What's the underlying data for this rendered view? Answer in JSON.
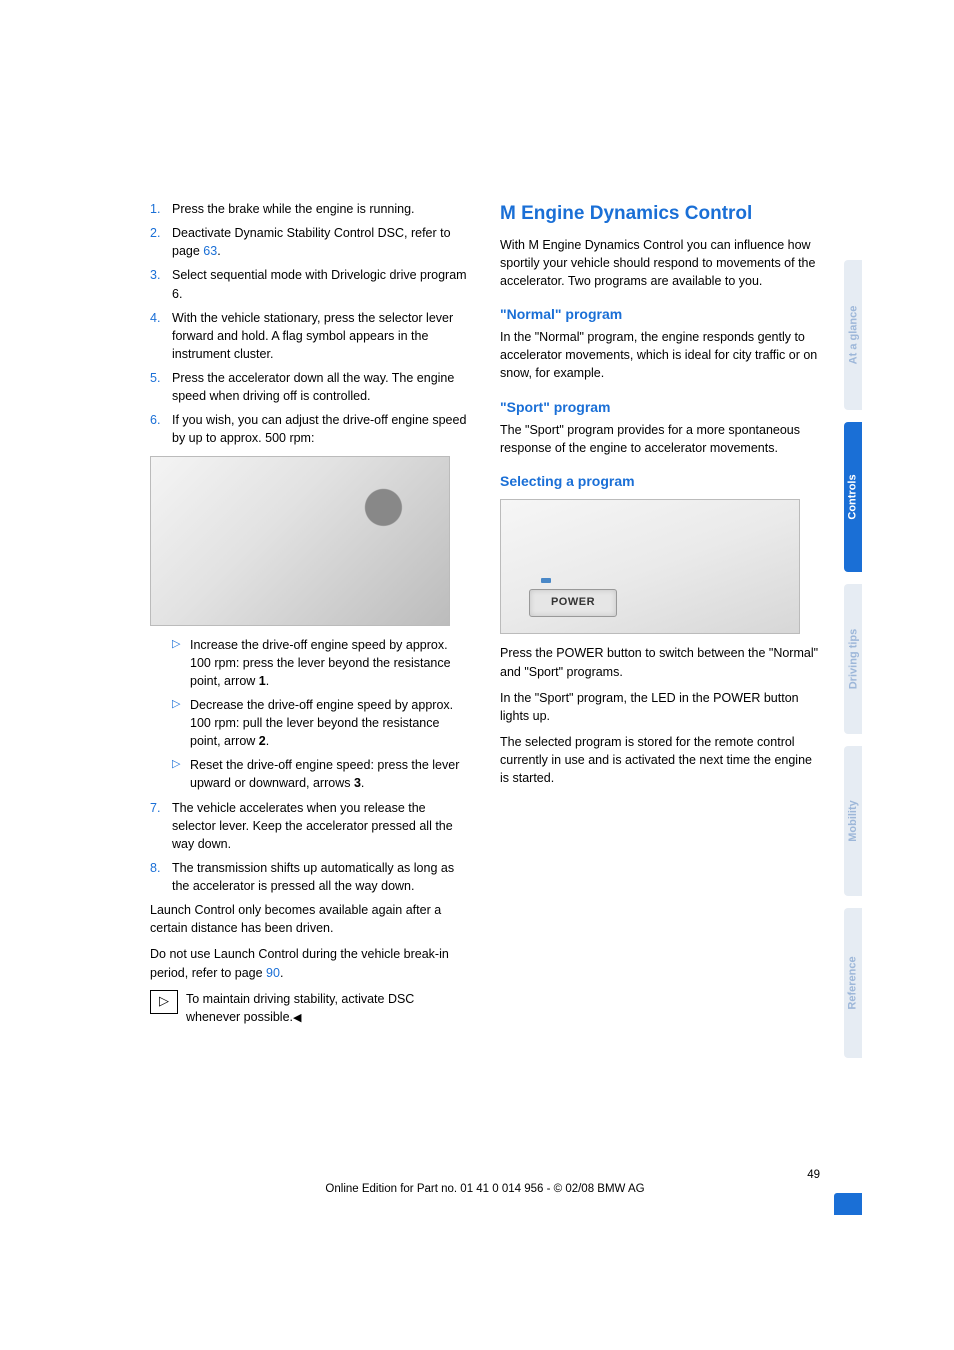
{
  "left": {
    "items": [
      {
        "n": "1.",
        "t": "Press the brake while the engine is running."
      },
      {
        "n": "2.",
        "t": "Deactivate Dynamic Stability Control DSC, refer to page ",
        "link": "63",
        "after": "."
      },
      {
        "n": "3.",
        "t": "Select sequential mode with Drivelogic drive program 6."
      },
      {
        "n": "4.",
        "t": "With the vehicle stationary, press the selector lever forward and hold. A flag symbol appears in the instrument cluster."
      },
      {
        "n": "5.",
        "t": "Press the accelerator down all the way. The engine speed when driving off is controlled."
      },
      {
        "n": "6.",
        "t": "If you wish, you can adjust the drive-off engine speed by up to approx. 500 rpm:"
      }
    ],
    "sub": [
      {
        "pre": "Increase the drive-off engine speed by approx. 100 rpm: press the lever beyond the resistance point, arrow ",
        "b": "1",
        "post": "."
      },
      {
        "pre": "Decrease the drive-off engine speed by approx. 100 rpm: pull the lever beyond the resistance point, arrow ",
        "b": "2",
        "post": "."
      },
      {
        "pre": "Reset the drive-off engine speed: press the lever upward or downward, arrows ",
        "b": "3",
        "post": "."
      }
    ],
    "items2": [
      {
        "n": "7.",
        "t": "The vehicle accelerates when you release the selector lever. Keep the accelerator pressed all the way down."
      },
      {
        "n": "8.",
        "t": "The transmission shifts up automatically as long as the accelerator is pressed all the way down."
      }
    ],
    "p1": "Launch Control only becomes available again after a certain distance has been driven.",
    "p2_pre": "Do not use Launch Control during the vehicle break-in period, refer to page ",
    "p2_link": "90",
    "p2_post": ".",
    "note": "To maintain driving stability, activate DSC whenever possible."
  },
  "right": {
    "h1": "M Engine Dynamics Control",
    "intro": "With M Engine Dynamics Control you can influence how sportily your vehicle should respond to movements of the accelerator. Two programs are available to you.",
    "normal_h": "\"Normal\" program",
    "normal_p": "In the \"Normal\" program, the engine responds gently to accelerator movements, which is ideal for city traffic or on snow, for example.",
    "sport_h": "\"Sport\" program",
    "sport_p": "The \"Sport\" program provides for a more spontaneous response of the engine to accelerator movements.",
    "select_h": "Selecting a program",
    "power_label": "POWER",
    "sp1": "Press the POWER button to switch between the \"Normal\" and \"Sport\" programs.",
    "sp2": "In the \"Sport\" program, the LED in the POWER button lights up.",
    "sp3": "The selected program is stored for the remote control currently in use and is activated the next time the engine is started."
  },
  "tabs": {
    "t1": "At a glance",
    "t2": "Controls",
    "t3": "Driving tips",
    "t4": "Mobility",
    "t5": "Reference"
  },
  "footer": {
    "page": "49",
    "edition": "Online Edition for Part no. 01 41 0 014 956 - © 02/08 BMW AG"
  }
}
